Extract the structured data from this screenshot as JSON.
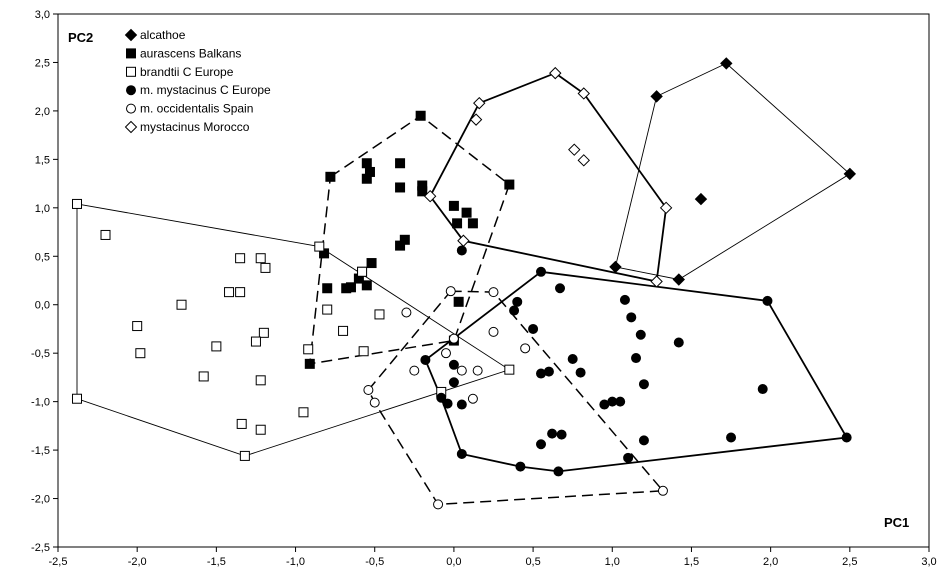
{
  "chart_data": {
    "type": "scatter",
    "title": "",
    "xlabel": "PC1",
    "ylabel": "PC2",
    "xlim": [
      -2.5,
      3.0
    ],
    "ylim": [
      -2.5,
      3.0
    ],
    "x_ticks": [
      "-2,5",
      "-2,0",
      "-1,5",
      "-1,0",
      "-0,5",
      "0,0",
      "0,5",
      "1,0",
      "1,5",
      "2,0",
      "2,5",
      "3,0"
    ],
    "y_ticks": [
      "-2,5",
      "-2,0",
      "-1,5",
      "-1,0",
      "-0,5",
      "0,0",
      "0,5",
      "1,0",
      "1,5",
      "2,0",
      "2,5",
      "3,0"
    ],
    "grid": false,
    "legend_position": "top-left",
    "series": [
      {
        "name": "alcathoe",
        "marker": "diamond-filled",
        "hull_style": "solid-thin",
        "points": [
          [
            1.72,
            2.49
          ],
          [
            1.28,
            2.15
          ],
          [
            2.5,
            1.35
          ],
          [
            1.56,
            1.09
          ],
          [
            1.02,
            0.39
          ],
          [
            1.42,
            0.26
          ]
        ],
        "hull": [
          [
            1.28,
            2.15
          ],
          [
            1.72,
            2.49
          ],
          [
            2.5,
            1.35
          ],
          [
            1.42,
            0.26
          ],
          [
            1.02,
            0.39
          ]
        ]
      },
      {
        "name": "aurascens Balkans",
        "marker": "square-filled",
        "hull_style": "dashed",
        "points": [
          [
            -0.21,
            1.95
          ],
          [
            -0.78,
            1.32
          ],
          [
            -0.55,
            1.46
          ],
          [
            -0.53,
            1.37
          ],
          [
            -0.34,
            1.46
          ],
          [
            -0.55,
            1.3
          ],
          [
            -0.34,
            1.21
          ],
          [
            -0.2,
            1.23
          ],
          [
            -0.2,
            1.17
          ],
          [
            0.35,
            1.24
          ],
          [
            0.0,
            1.02
          ],
          [
            0.08,
            0.95
          ],
          [
            0.02,
            0.84
          ],
          [
            0.12,
            0.84
          ],
          [
            -0.31,
            0.67
          ],
          [
            -0.34,
            0.61
          ],
          [
            -0.82,
            0.53
          ],
          [
            -0.52,
            0.43
          ],
          [
            -0.58,
            0.34
          ],
          [
            -0.6,
            0.27
          ],
          [
            -0.65,
            0.18
          ],
          [
            -0.68,
            0.17
          ],
          [
            -0.8,
            0.17
          ],
          [
            -0.55,
            0.2
          ],
          [
            0.03,
            0.03
          ],
          [
            0.0,
            -0.37
          ],
          [
            -0.91,
            -0.61
          ]
        ],
        "hull": [
          [
            -0.78,
            1.32
          ],
          [
            -0.21,
            1.95
          ],
          [
            0.35,
            1.24
          ],
          [
            0.0,
            -0.37
          ],
          [
            -0.91,
            -0.61
          ]
        ]
      },
      {
        "name": "brandtii C Europe",
        "marker": "square-open",
        "hull_style": "solid-thin",
        "points": [
          [
            -2.38,
            1.04
          ],
          [
            -2.2,
            0.72
          ],
          [
            -1.35,
            0.48
          ],
          [
            -1.22,
            0.48
          ],
          [
            -1.19,
            0.38
          ],
          [
            -1.42,
            0.13
          ],
          [
            -1.35,
            0.13
          ],
          [
            -1.72,
            0.0
          ],
          [
            -2.0,
            -0.22
          ],
          [
            -1.2,
            -0.29
          ],
          [
            -1.25,
            -0.38
          ],
          [
            -1.5,
            -0.43
          ],
          [
            -1.98,
            -0.5
          ],
          [
            -1.58,
            -0.74
          ],
          [
            -1.22,
            -0.78
          ],
          [
            -1.34,
            -1.23
          ],
          [
            -1.22,
            -1.29
          ],
          [
            -1.32,
            -1.56
          ],
          [
            -0.95,
            -1.11
          ],
          [
            -2.38,
            -0.97
          ],
          [
            -0.85,
            0.6
          ],
          [
            -0.58,
            0.34
          ],
          [
            -0.8,
            -0.05
          ],
          [
            -0.7,
            -0.27
          ],
          [
            -0.57,
            -0.48
          ],
          [
            -0.47,
            -0.1
          ],
          [
            -0.08,
            -0.9
          ],
          [
            0.35,
            -0.67
          ],
          [
            -0.92,
            -0.46
          ]
        ],
        "hull": [
          [
            -2.38,
            1.04
          ],
          [
            -0.85,
            0.6
          ],
          [
            0.35,
            -0.67
          ],
          [
            -1.32,
            -1.56
          ],
          [
            -2.38,
            -0.97
          ]
        ]
      },
      {
        "name": "m. mystacinus C Europe",
        "marker": "circle-filled",
        "hull_style": "solid-thick",
        "points": [
          [
            0.05,
            0.56
          ],
          [
            0.55,
            0.34
          ],
          [
            0.4,
            0.03
          ],
          [
            0.67,
            0.17
          ],
          [
            0.38,
            -0.06
          ],
          [
            0.5,
            -0.25
          ],
          [
            1.08,
            0.05
          ],
          [
            1.12,
            -0.13
          ],
          [
            1.18,
            -0.31
          ],
          [
            1.42,
            -0.39
          ],
          [
            0.75,
            -0.56
          ],
          [
            0.55,
            -0.71
          ],
          [
            0.6,
            -0.69
          ],
          [
            0.8,
            -0.7
          ],
          [
            0.0,
            -0.62
          ],
          [
            0.0,
            -0.8
          ],
          [
            1.15,
            -0.55
          ],
          [
            1.2,
            -0.82
          ],
          [
            1.95,
            -0.87
          ],
          [
            1.0,
            -1.0
          ],
          [
            1.05,
            -1.0
          ],
          [
            0.95,
            -1.03
          ],
          [
            -0.08,
            -0.96
          ],
          [
            -0.04,
            -1.02
          ],
          [
            0.05,
            -1.03
          ],
          [
            0.55,
            -1.44
          ],
          [
            0.62,
            -1.33
          ],
          [
            0.68,
            -1.34
          ],
          [
            1.2,
            -1.4
          ],
          [
            1.75,
            -1.37
          ],
          [
            1.1,
            -1.58
          ],
          [
            0.05,
            -1.54
          ],
          [
            0.42,
            -1.67
          ],
          [
            0.66,
            -1.72
          ],
          [
            1.98,
            0.04
          ],
          [
            2.48,
            -1.37
          ],
          [
            -0.18,
            -0.57
          ]
        ],
        "hull": [
          [
            0.55,
            0.34
          ],
          [
            1.98,
            0.04
          ],
          [
            2.48,
            -1.37
          ],
          [
            0.66,
            -1.72
          ],
          [
            0.42,
            -1.67
          ],
          [
            0.05,
            -1.54
          ],
          [
            -0.08,
            -0.96
          ],
          [
            -0.18,
            -0.57
          ]
        ]
      },
      {
        "name": "m. occidentalis Spain",
        "marker": "circle-open",
        "hull_style": "dashed",
        "points": [
          [
            -0.02,
            0.14
          ],
          [
            0.25,
            0.13
          ],
          [
            -0.3,
            -0.08
          ],
          [
            0.0,
            -0.35
          ],
          [
            0.25,
            -0.28
          ],
          [
            -0.05,
            -0.5
          ],
          [
            0.45,
            -0.45
          ],
          [
            0.05,
            -0.68
          ],
          [
            0.15,
            -0.68
          ],
          [
            -0.25,
            -0.68
          ],
          [
            0.12,
            -0.97
          ],
          [
            -0.54,
            -0.88
          ],
          [
            -0.5,
            -1.01
          ],
          [
            -0.1,
            -2.06
          ],
          [
            1.32,
            -1.92
          ]
        ],
        "hull": [
          [
            -0.02,
            0.14
          ],
          [
            0.25,
            0.13
          ],
          [
            1.32,
            -1.92
          ],
          [
            -0.1,
            -2.06
          ],
          [
            -0.5,
            -1.01
          ],
          [
            -0.54,
            -0.88
          ]
        ]
      },
      {
        "name": "mystacinus Morocco",
        "marker": "diamond-open",
        "hull_style": "solid-thick",
        "points": [
          [
            0.64,
            2.39
          ],
          [
            0.16,
            2.08
          ],
          [
            0.82,
            2.18
          ],
          [
            0.14,
            1.91
          ],
          [
            0.76,
            1.6
          ],
          [
            0.82,
            1.49
          ],
          [
            -0.15,
            1.12
          ],
          [
            0.06,
            0.66
          ],
          [
            1.34,
            1.0
          ],
          [
            1.28,
            0.24
          ]
        ],
        "hull": [
          [
            0.16,
            2.08
          ],
          [
            0.64,
            2.39
          ],
          [
            0.82,
            2.18
          ],
          [
            1.34,
            1.0
          ],
          [
            1.28,
            0.24
          ],
          [
            0.06,
            0.66
          ],
          [
            -0.15,
            1.12
          ]
        ]
      }
    ]
  }
}
